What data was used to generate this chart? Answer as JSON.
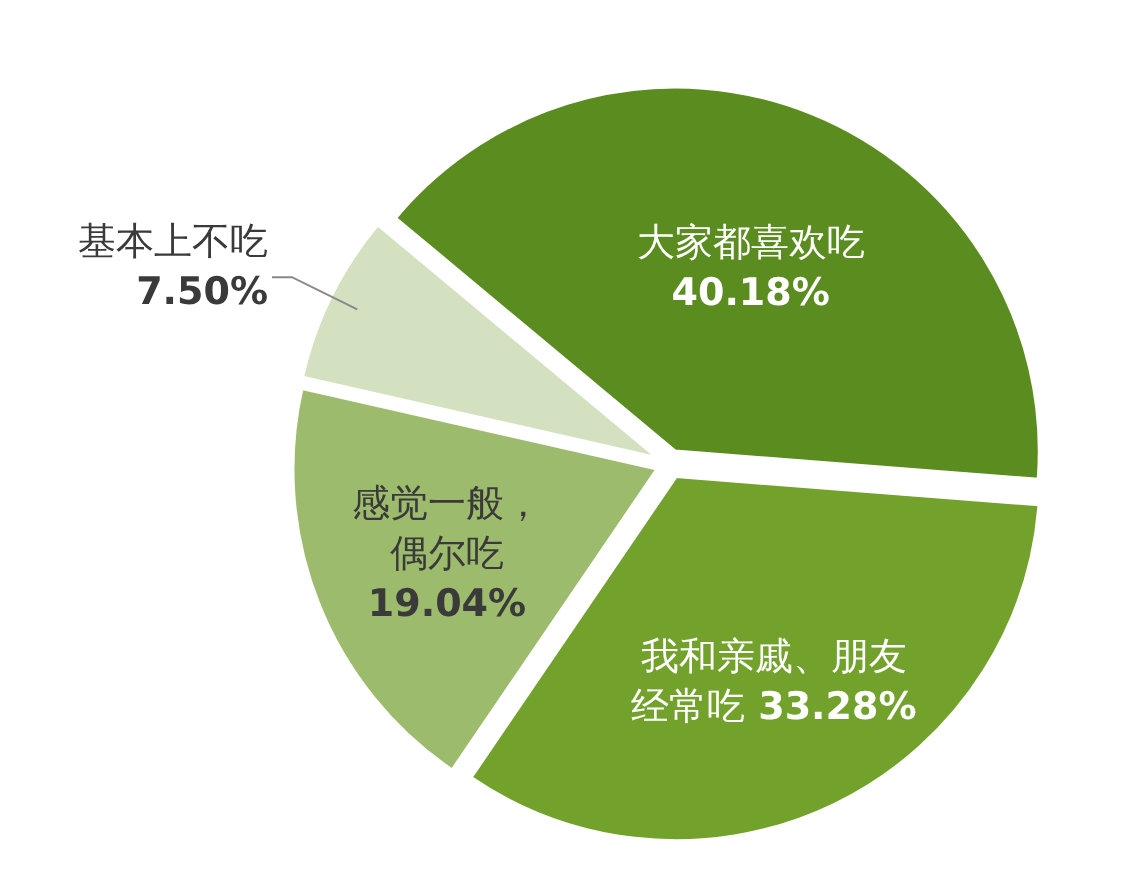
{
  "chart_data": {
    "type": "pie",
    "categories": [
      "大家都喜欢吃",
      "我和亲戚、朋友经常吃",
      "感觉一般，偶尔吃",
      "基本上不吃"
    ],
    "values": [
      40.18,
      33.28,
      19.04,
      7.5
    ],
    "value_labels": [
      "40.18%",
      "33.28%",
      "19.04%",
      "7.50%"
    ],
    "colors": [
      "#5b8c1f",
      "#72a22c",
      "#9dbb6c",
      "#d4e1c0"
    ]
  }
}
